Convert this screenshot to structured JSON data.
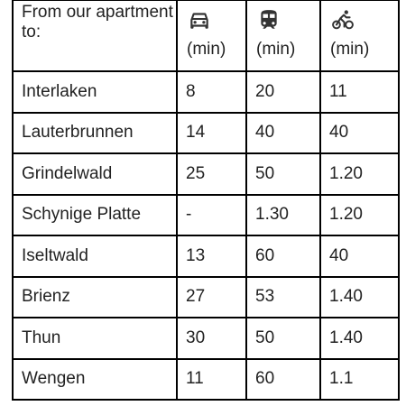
{
  "table": {
    "header_label": "From our apartment to:",
    "modes": [
      {
        "icon": "car-icon",
        "unit": "(min)"
      },
      {
        "icon": "train-icon",
        "unit": "(min)"
      },
      {
        "icon": "bicycle-icon",
        "unit": "(min)"
      }
    ],
    "rows": [
      {
        "destination": "Interlaken",
        "car": "8",
        "train": "20",
        "bike": "11"
      },
      {
        "destination": "Lauterbrunnen",
        "car": "14",
        "train": "40",
        "bike": "40"
      },
      {
        "destination": "Grindelwald",
        "car": "25",
        "train": "50",
        "bike": "1.20"
      },
      {
        "destination": "Schynige Platte",
        "car": "-",
        "train": "1.30",
        "bike": "1.20"
      },
      {
        "destination": "Iseltwald",
        "car": "13",
        "train": "60",
        "bike": "40"
      },
      {
        "destination": "Brienz",
        "car": "27",
        "train": "53",
        "bike": "1.40"
      },
      {
        "destination": "Thun",
        "car": "30",
        "train": "50",
        "bike": "1.40"
      },
      {
        "destination": "Wengen",
        "car": "11",
        "train": "60",
        "bike": "1.1"
      }
    ]
  }
}
